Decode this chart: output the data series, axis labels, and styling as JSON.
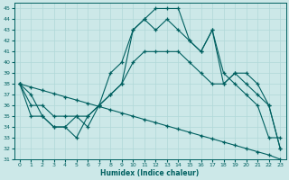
{
  "xlabel": "Humidex (Indice chaleur)",
  "xlim": [
    -0.5,
    23.5
  ],
  "ylim": [
    31,
    45.5
  ],
  "bg_color": "#cce8e8",
  "grid_color": "#b0d8d8",
  "line_color": "#006060",
  "line1_y": [
    38,
    37,
    35,
    34,
    34,
    33,
    35,
    36,
    39,
    40,
    43,
    44,
    45,
    45,
    45,
    42,
    41,
    43,
    39,
    38,
    37,
    36,
    33,
    33
  ],
  "line2_y": [
    38,
    35,
    35,
    34,
    34,
    35,
    34,
    36,
    37,
    38,
    43,
    44,
    43,
    44,
    43,
    42,
    41,
    43,
    38,
    39,
    39,
    38,
    36,
    32
  ],
  "line3_y": [
    38,
    36,
    36,
    35,
    35,
    35,
    35,
    36,
    37,
    38,
    40,
    41,
    41,
    41,
    41,
    40,
    39,
    38,
    38,
    39,
    38,
    37,
    36,
    32
  ],
  "line4_y": [
    38,
    37.7,
    37.4,
    37.1,
    36.8,
    36.5,
    36.2,
    35.9,
    35.6,
    35.3,
    35.0,
    34.7,
    34.4,
    34.1,
    33.8,
    33.5,
    33.2,
    32.9,
    32.6,
    32.3,
    32.0,
    31.7,
    31.4,
    31
  ],
  "xticks": [
    0,
    1,
    2,
    3,
    4,
    5,
    6,
    7,
    8,
    9,
    10,
    11,
    12,
    13,
    14,
    15,
    16,
    17,
    18,
    19,
    20,
    21,
    22,
    23
  ],
  "yticks": [
    31,
    32,
    33,
    34,
    35,
    36,
    37,
    38,
    39,
    40,
    41,
    42,
    43,
    44,
    45
  ]
}
